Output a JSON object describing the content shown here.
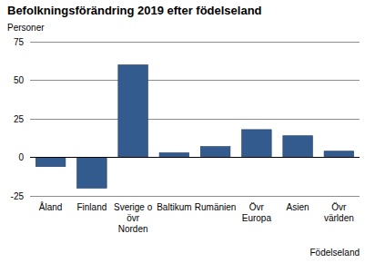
{
  "chart_data": {
    "type": "bar",
    "title": "Befolkningsförändring 2019 efter födelseland",
    "y_label": "Personer",
    "x_label": "Födelseland",
    "categories": [
      "Åland",
      "Finland",
      "Sverige o\növr\nNorden",
      "Baltikum",
      "Rumänien",
      "Övr\nEuropa",
      "Asien",
      "Övr\nvärlden"
    ],
    "values": [
      -6,
      -20,
      60,
      3,
      7,
      18,
      14,
      4
    ],
    "color": "#335b8e",
    "ylim": [
      -25,
      75
    ],
    "yticks": [
      -25,
      0,
      25,
      50,
      75
    ],
    "grid": true
  }
}
